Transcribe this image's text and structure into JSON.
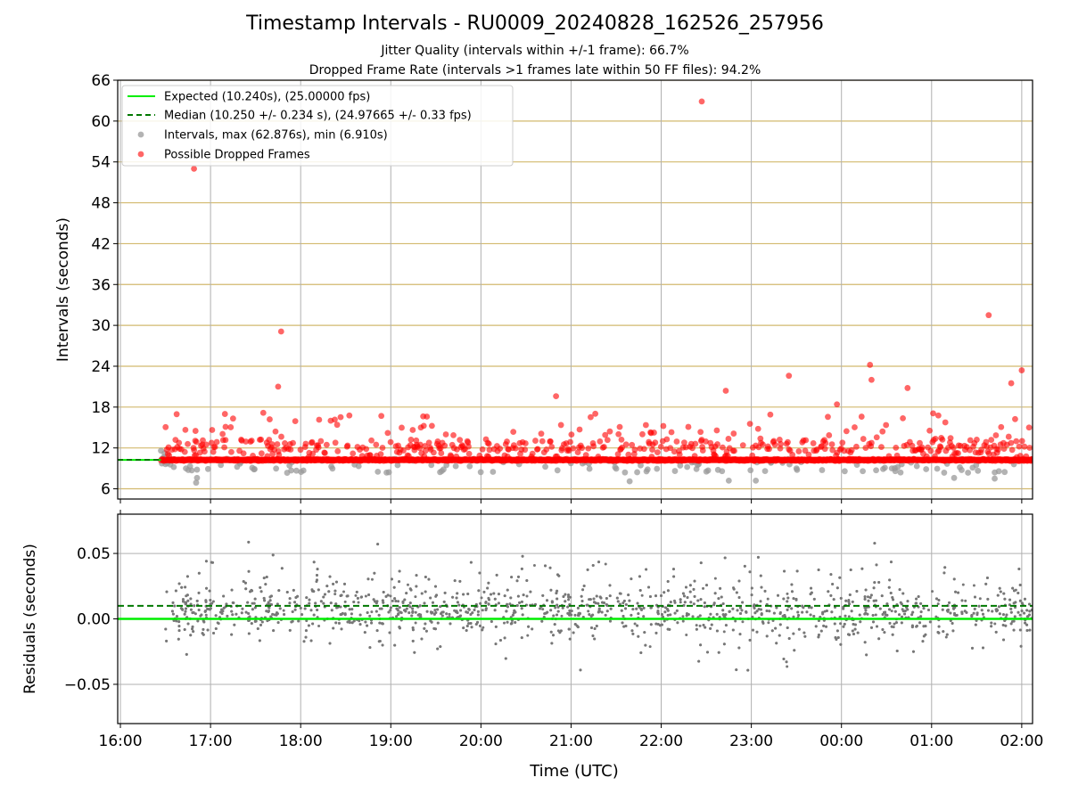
{
  "title": "Timestamp Intervals - RU0009_20240828_162526_257956",
  "subtitle_jitter": "Jitter Quality (intervals within +/-1 frame): 66.7%",
  "subtitle_dropped": "Dropped Frame Rate (intervals >1 frames late within 50 FF files): 94.2%",
  "colors": {
    "expected": "#00ee00",
    "median": "#007700",
    "intervals": "#999999",
    "dropped": "#ff0000",
    "hgrid_top": "#d2b96e",
    "grid": "#b0b0b0",
    "residuals": "#777777"
  },
  "chart_data": [
    {
      "type": "scatter",
      "panel": "intervals",
      "ylabel": "Intervals (seconds)",
      "ylim": [
        4.5,
        66
      ],
      "yticks": [
        6,
        12,
        18,
        24,
        30,
        36,
        42,
        48,
        54,
        60,
        66
      ],
      "ytick_labels": [
        "6",
        "12",
        "18",
        "24",
        "30",
        "36",
        "42",
        "48",
        "54",
        "60",
        "66"
      ],
      "xlim_hours": [
        15.97,
        26.12
      ],
      "grid": "on",
      "legend_position": "top-left",
      "legend": [
        {
          "label": "Expected (10.240s), (25.00000 fps)",
          "marker": "solid-line"
        },
        {
          "label": "Median (10.250 +/- 0.234 s), (24.97665 +/- 0.33 fps)",
          "marker": "dashed-line"
        },
        {
          "label": "Intervals, max (62.876s), min (6.910s)",
          "marker": "gray-dot"
        },
        {
          "label": "Possible Dropped Frames",
          "marker": "red-dot"
        }
      ],
      "expected_interval": 10.24,
      "median_interval": 10.25,
      "series_time_range_hours": [
        16.45,
        26.12
      ],
      "dropped_frame_outliers": [
        {
          "time": "16:49",
          "interval": 53.0
        },
        {
          "time": "16:50",
          "interval": 14.5
        },
        {
          "time": "17:10",
          "interval": 15.1
        },
        {
          "time": "17:45",
          "interval": 21.0
        },
        {
          "time": "17:47",
          "interval": 29.1
        },
        {
          "time": "18:20",
          "interval": 16.0
        },
        {
          "time": "19:24",
          "interval": 16.6
        },
        {
          "time": "20:50",
          "interval": 19.6
        },
        {
          "time": "22:27",
          "interval": 62.876
        },
        {
          "time": "22:43",
          "interval": 20.4
        },
        {
          "time": "23:25",
          "interval": 22.6
        },
        {
          "time": "23:57",
          "interval": 18.4
        },
        {
          "time": "00:19",
          "interval": 24.2
        },
        {
          "time": "00:20",
          "interval": 22.0
        },
        {
          "time": "00:44",
          "interval": 20.8
        },
        {
          "time": "01:38",
          "interval": 31.5
        },
        {
          "time": "01:53",
          "interval": 21.5
        },
        {
          "time": "02:00",
          "interval": 23.4
        }
      ],
      "interval_min": 6.91,
      "interval_max": 62.876
    },
    {
      "type": "scatter",
      "panel": "residuals",
      "xlabel": "Time (UTC)",
      "ylabel": "Residuals (seconds)",
      "ylim": [
        -0.08,
        0.08
      ],
      "yticks": [
        -0.05,
        0.0,
        0.05
      ],
      "ytick_labels": [
        "−0.05",
        "0.00",
        "0.05"
      ],
      "xticks": [
        "16:00",
        "17:00",
        "18:00",
        "19:00",
        "20:00",
        "21:00",
        "22:00",
        "23:00",
        "00:00",
        "01:00",
        "02:00"
      ],
      "zero_line": 0.0,
      "median_residual": 0.01,
      "residual_spread_sd": 0.025,
      "grid": "on"
    }
  ]
}
